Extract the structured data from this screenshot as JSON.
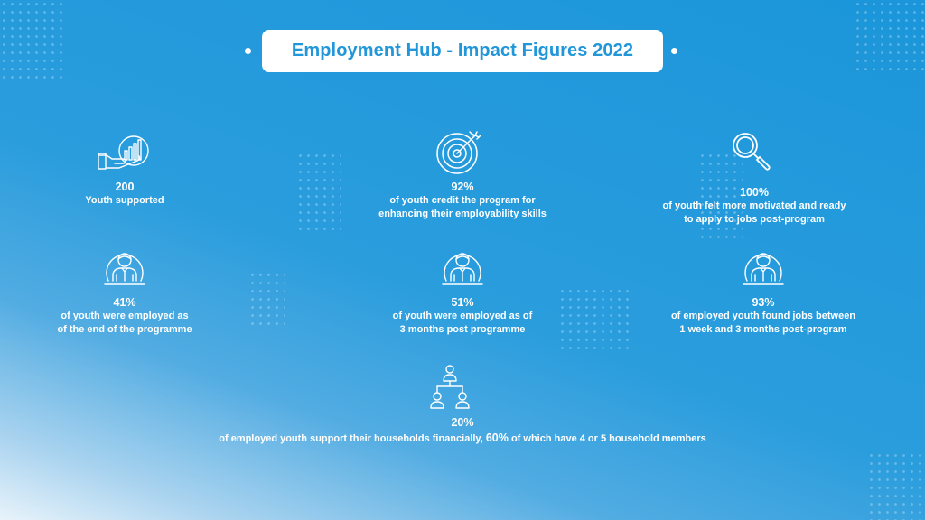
{
  "title": "Employment Hub - Impact Figures 2022",
  "stats": [
    {
      "value": "200",
      "description": "Youth supported",
      "icon": "hand-growth-chart-icon"
    },
    {
      "value": "92%",
      "description": "of youth credit the program for\nenhancing their employability skills",
      "icon": "target-icon"
    },
    {
      "value": "100%",
      "description": "of youth felt more motivated and ready\nto apply to jobs post-program",
      "icon": "magnifier-icon"
    },
    {
      "value": "41%",
      "description": "of youth were employed as\nof the end of the programme",
      "icon": "employee-icon"
    },
    {
      "value": "51%",
      "description": "of youth were employed as of\n3 months post programme",
      "icon": "employee-icon"
    },
    {
      "value": "93%",
      "description": "of employed youth found jobs between\n1 week and 3 months post-program",
      "icon": "employee-icon"
    }
  ],
  "bottom_stat": {
    "value": "20%",
    "description_pre": "of employed youth support their households financially, ",
    "highlight": "60%",
    "description_post": " of which have 4 or 5 household members",
    "icon": "network-hierarchy-icon"
  }
}
